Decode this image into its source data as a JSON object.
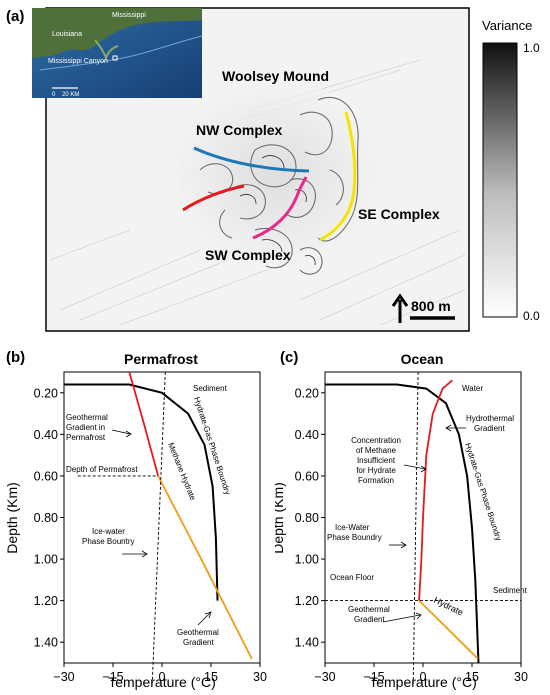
{
  "panel_a": {
    "letter": "(a)",
    "inset_labels": {
      "mississippi": "Mississippi",
      "louisiana": "Louisiana",
      "canyon": "Mississippi Canyon",
      "scale": "0    20 KM"
    },
    "labels": {
      "woolsey": "Woolsey Mound",
      "nw": "NW Complex",
      "se": "SE Complex",
      "sw": "SW Complex",
      "scale": "800 m"
    },
    "colorbar": {
      "title": "Variance",
      "max": "1.0",
      "min": "0.0"
    },
    "colors": {
      "nw": "#1f77b4",
      "red": "#e41a1c",
      "sw": "#e7298a",
      "se": "#f5e400"
    }
  },
  "panel_b": {
    "letter": "(b)",
    "title": "Permafrost",
    "ylabel": "Depth (Km)",
    "xlabel": "Temperature (°C)",
    "annotations": {
      "sediment": "Sediment",
      "geo_perma_1": "Geothermal",
      "geo_perma_2": "Gradient in",
      "geo_perma_3": "Permafrost",
      "depth_perma": "Depth of Permafrost",
      "methane_hydrate": "Methane Hydrate",
      "phase_boundary": "Hydrate-Gas Phase Boundry",
      "icewater_1": "Ice-water",
      "icewater_2": "Phase Bountry",
      "geo_1": "Geothermal",
      "geo_2": "Gradient"
    }
  },
  "panel_c": {
    "letter": "(c)",
    "title": "Ocean",
    "ylabel": "Depth (Km)",
    "xlabel": "Temperature (°C)",
    "annotations": {
      "water": "Water",
      "hydro_1": "Hydrothermal",
      "hydro_2": "Gradient",
      "conc_1": "Concentration",
      "conc_2": "of Methane",
      "conc_3": "Insufficient",
      "conc_4": "for Hydrate",
      "conc_5": "Formation",
      "phase_boundary": "Hydrate-Gas Phase Boundry",
      "icewater_1": "Ice-Water",
      "icewater_2": "Phase Boundry",
      "ocean_floor": "Ocean Floor",
      "sediment": "Sediment",
      "hydrate": "Hydrate",
      "geo_1": "Geothermal",
      "geo_2": "Gradient"
    }
  },
  "chart_data": [
    {
      "type": "line",
      "title": "Permafrost",
      "xlabel": "Temperature (°C)",
      "ylabel": "Depth (Km)",
      "xlim": [
        -30,
        30
      ],
      "ylim": [
        1.5,
        0.1
      ],
      "xticks": [
        "−30",
        "−15",
        "0",
        "15",
        "30"
      ],
      "yticks": [
        "0.20",
        "0.40",
        "0.60",
        "0.80",
        "1.00",
        "1.20",
        "1.40"
      ],
      "series": [
        {
          "x": [
            -30,
            -10,
            0,
            8,
            13,
            15.5,
            16.5,
            17
          ],
          "y": [
            0.16,
            0.16,
            0.2,
            0.3,
            0.45,
            0.65,
            0.9,
            1.2
          ]
        },
        {
          "x": [
            -10,
            -5.5,
            -1.2
          ],
          "y": [
            0.1,
            0.35,
            0.6
          ]
        },
        {
          "x": [
            -1.2,
            12,
            27.5
          ],
          "y": [
            0.6,
            1.0,
            1.48
          ]
        },
        {
          "x": [
            1,
            -3
          ],
          "y": [
            0.1,
            1.6
          ]
        },
        {
          "x": [
            -25.8,
            -1.2
          ],
          "y": [
            0.6,
            0.6
          ]
        }
      ]
    },
    {
      "type": "line",
      "title": "Ocean",
      "xlabel": "Temperature (°C)",
      "ylabel": "Depth (Km)",
      "xlim": [
        -30,
        30
      ],
      "ylim": [
        1.5,
        0.1
      ],
      "xticks": [
        "−30",
        "−15",
        "0",
        "15",
        "30"
      ],
      "yticks": [
        "0.20",
        "0.40",
        "0.60",
        "0.80",
        "1.00",
        "1.20",
        "1.40"
      ],
      "series": [
        {
          "x": [
            -30,
            -8,
            1,
            7,
            11,
            13.5,
            15,
            16,
            16.5,
            17
          ],
          "y": [
            0.16,
            0.16,
            0.18,
            0.25,
            0.4,
            0.6,
            0.85,
            1.1,
            1.3,
            1.5
          ]
        },
        {
          "x": [
            9,
            6,
            3,
            1,
            0,
            -0.5,
            -1.2
          ],
          "y": [
            0.14,
            0.18,
            0.3,
            0.5,
            0.8,
            1.0,
            1.2
          ]
        },
        {
          "x": [
            -1.2,
            16.8
          ],
          "y": [
            1.2,
            1.48
          ]
        },
        {
          "x": [
            -1.5,
            -3
          ],
          "y": [
            0.1,
            1.6
          ]
        },
        {
          "x": [
            -30,
            30
          ],
          "y": [
            1.2,
            1.2
          ]
        }
      ]
    }
  ]
}
